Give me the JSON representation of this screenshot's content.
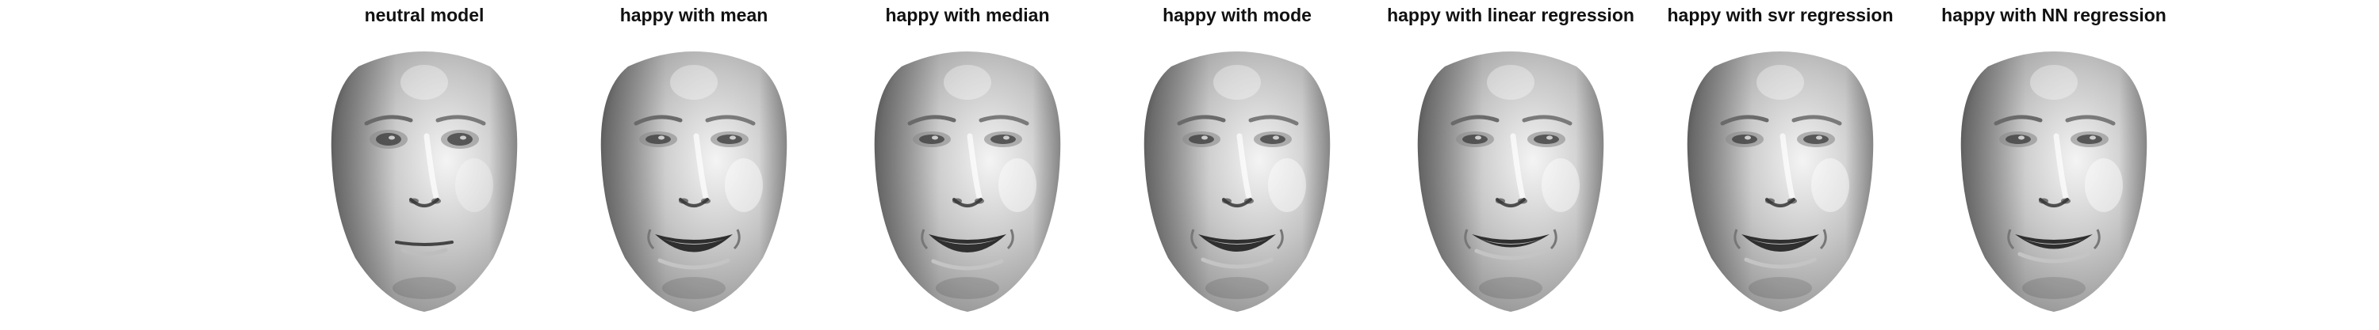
{
  "panels": [
    {
      "title": "neutral model",
      "expression": "neutral",
      "mouth_open": 0.0
    },
    {
      "title": "happy with mean",
      "expression": "happy",
      "mouth_open": 0.85
    },
    {
      "title": "happy with median",
      "expression": "happy",
      "mouth_open": 0.9
    },
    {
      "title": "happy with mode",
      "expression": "happy",
      "mouth_open": 0.8
    },
    {
      "title": "happy with linear regression",
      "expression": "happy",
      "mouth_open": 0.25
    },
    {
      "title": "happy with svr regression",
      "expression": "happy",
      "mouth_open": 0.8
    },
    {
      "title": "happy with NN regression",
      "expression": "happy",
      "mouth_open": 0.45
    }
  ],
  "colors": {
    "background": "#ffffff",
    "title_text": "#111111",
    "face_light": "#f4f4f4",
    "face_mid": "#9a9a9a",
    "face_dark": "#3a3a3a"
  }
}
